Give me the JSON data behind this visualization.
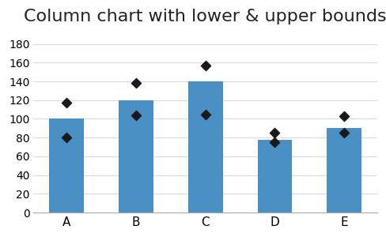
{
  "title": "Column chart with lower & upper bounds",
  "categories": [
    "A",
    "B",
    "C",
    "D",
    "E"
  ],
  "bar_values": [
    100,
    120,
    140,
    78,
    90
  ],
  "lower_bounds": [
    80,
    104,
    105,
    75,
    85
  ],
  "upper_bounds": [
    117,
    138,
    157,
    85,
    103
  ],
  "bar_color": "#4A90C4",
  "marker_color": "#1a1a1a",
  "ylim": [
    0,
    190
  ],
  "yticks": [
    0,
    20,
    40,
    60,
    80,
    100,
    120,
    140,
    160,
    180
  ],
  "title_fontsize": 16,
  "background_color": "#ffffff",
  "grid_color": "#d9d9d9",
  "marker_size": 8
}
